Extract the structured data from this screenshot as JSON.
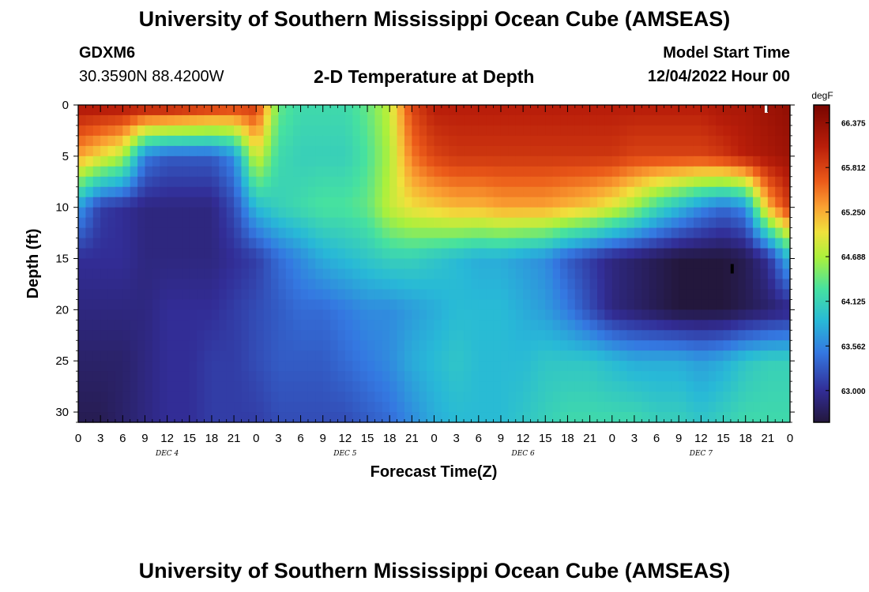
{
  "header": {
    "title": "University of Southern Mississippi Ocean Cube (AMSEAS)",
    "station_id": "GDXM6",
    "station_coords": "30.3590N  88.4200W",
    "subtitle": "2-D Temperature at Depth",
    "start_label": "Model Start Time",
    "start_value": "12/04/2022 Hour 00"
  },
  "footer": {
    "title": "University of Southern Mississippi Ocean Cube (AMSEAS)"
  },
  "chart_data": {
    "type": "heatmap",
    "xlabel": "Forecast Time(Z)",
    "ylabel": "Depth (ft)",
    "x_ticks": [
      "0",
      "3",
      "6",
      "9",
      "12",
      "15",
      "18",
      "21",
      "0",
      "3",
      "6",
      "9",
      "12",
      "15",
      "18",
      "21",
      "0",
      "3",
      "6",
      "9",
      "12",
      "15",
      "18",
      "21",
      "0",
      "3",
      "6",
      "9",
      "12",
      "15",
      "18",
      "21",
      "0"
    ],
    "x_hours": [
      0,
      96
    ],
    "day_labels": [
      "DEC 4",
      "DEC 5",
      "DEC 6",
      "DEC 7"
    ],
    "y_ticks": [
      0,
      5,
      10,
      15,
      20,
      25,
      30
    ],
    "ylim": [
      0,
      31
    ],
    "colorbar": {
      "unit": "degF",
      "ticks": [
        "66.375",
        "65.812",
        "65.250",
        "64.688",
        "64.125",
        "63.562",
        "63.000"
      ],
      "range": [
        62.6,
        66.6
      ]
    },
    "depths_ft": [
      0,
      5,
      10,
      15,
      20,
      25,
      31
    ],
    "times_hr": [
      0,
      3,
      6,
      9,
      12,
      15,
      18,
      21,
      24,
      27,
      30,
      33,
      36,
      39,
      42,
      45,
      48,
      51,
      54,
      57,
      60,
      63,
      66,
      69,
      72,
      75,
      78,
      81,
      84,
      87,
      90,
      93,
      96
    ],
    "temperature_degF": [
      [
        66.2,
        66.2,
        66.2,
        66.2,
        66.2,
        66.1,
        66.0,
        65.9,
        65.9,
        64.4,
        64.2,
        64.2,
        64.2,
        64.4,
        64.8,
        65.8,
        66.1,
        66.1,
        66.1,
        66.1,
        66.1,
        66.1,
        66.1,
        66.1,
        66.1,
        66.1,
        66.1,
        66.1,
        66.1,
        66.2,
        66.2,
        66.3,
        66.4
      ],
      [
        65.3,
        65.0,
        64.7,
        63.5,
        63.3,
        63.3,
        63.3,
        63.6,
        64.9,
        64.2,
        64.1,
        64.1,
        64.1,
        64.3,
        64.7,
        65.5,
        65.8,
        65.9,
        65.9,
        65.9,
        65.9,
        65.9,
        65.9,
        65.9,
        65.9,
        65.8,
        65.8,
        65.8,
        65.8,
        65.9,
        66.1,
        66.2,
        66.3
      ],
      [
        63.7,
        63.1,
        63.0,
        62.9,
        62.9,
        62.9,
        62.9,
        63.2,
        63.9,
        64.1,
        64.2,
        64.3,
        64.3,
        64.4,
        64.8,
        65.0,
        65.1,
        65.2,
        65.2,
        65.3,
        65.3,
        65.3,
        65.2,
        65.1,
        64.9,
        64.6,
        64.2,
        63.9,
        63.6,
        63.4,
        63.6,
        65.2,
        65.9
      ],
      [
        63.0,
        63.0,
        63.0,
        62.9,
        62.9,
        62.9,
        62.9,
        63.0,
        63.1,
        63.4,
        63.6,
        63.8,
        63.9,
        64.0,
        64.1,
        64.1,
        64.0,
        63.9,
        63.8,
        63.8,
        63.7,
        63.6,
        63.3,
        63.1,
        62.9,
        62.8,
        62.7,
        62.6,
        62.6,
        62.6,
        62.7,
        63.0,
        63.9
      ],
      [
        62.9,
        62.9,
        62.9,
        62.9,
        63.0,
        63.0,
        63.0,
        63.1,
        63.2,
        63.3,
        63.4,
        63.4,
        63.5,
        63.6,
        63.6,
        63.7,
        63.8,
        63.9,
        63.9,
        63.9,
        63.8,
        63.7,
        63.5,
        63.2,
        62.9,
        62.8,
        62.7,
        62.6,
        62.6,
        62.6,
        62.7,
        62.8,
        62.9
      ],
      [
        62.8,
        62.8,
        62.8,
        62.9,
        63.0,
        63.0,
        63.1,
        63.1,
        63.2,
        63.3,
        63.3,
        63.3,
        63.4,
        63.5,
        63.6,
        63.8,
        63.9,
        64.0,
        63.9,
        63.9,
        63.9,
        64.0,
        64.0,
        64.0,
        63.9,
        63.8,
        63.8,
        63.8,
        63.7,
        63.8,
        64.0,
        64.1,
        64.1
      ],
      [
        62.7,
        62.7,
        62.8,
        62.9,
        63.0,
        63.0,
        63.1,
        63.1,
        63.1,
        63.2,
        63.2,
        63.2,
        63.2,
        63.3,
        63.4,
        63.6,
        63.8,
        63.9,
        63.9,
        63.9,
        64.0,
        64.1,
        64.2,
        64.2,
        64.2,
        64.2,
        64.1,
        64.1,
        64.0,
        64.1,
        64.2,
        64.2,
        64.2
      ]
    ],
    "markers": [
      {
        "hour": 92.8,
        "depth": 0.3,
        "color": "#ffffff"
      },
      {
        "hour": 88.2,
        "depth": 16.0,
        "color": "#000000"
      }
    ]
  }
}
